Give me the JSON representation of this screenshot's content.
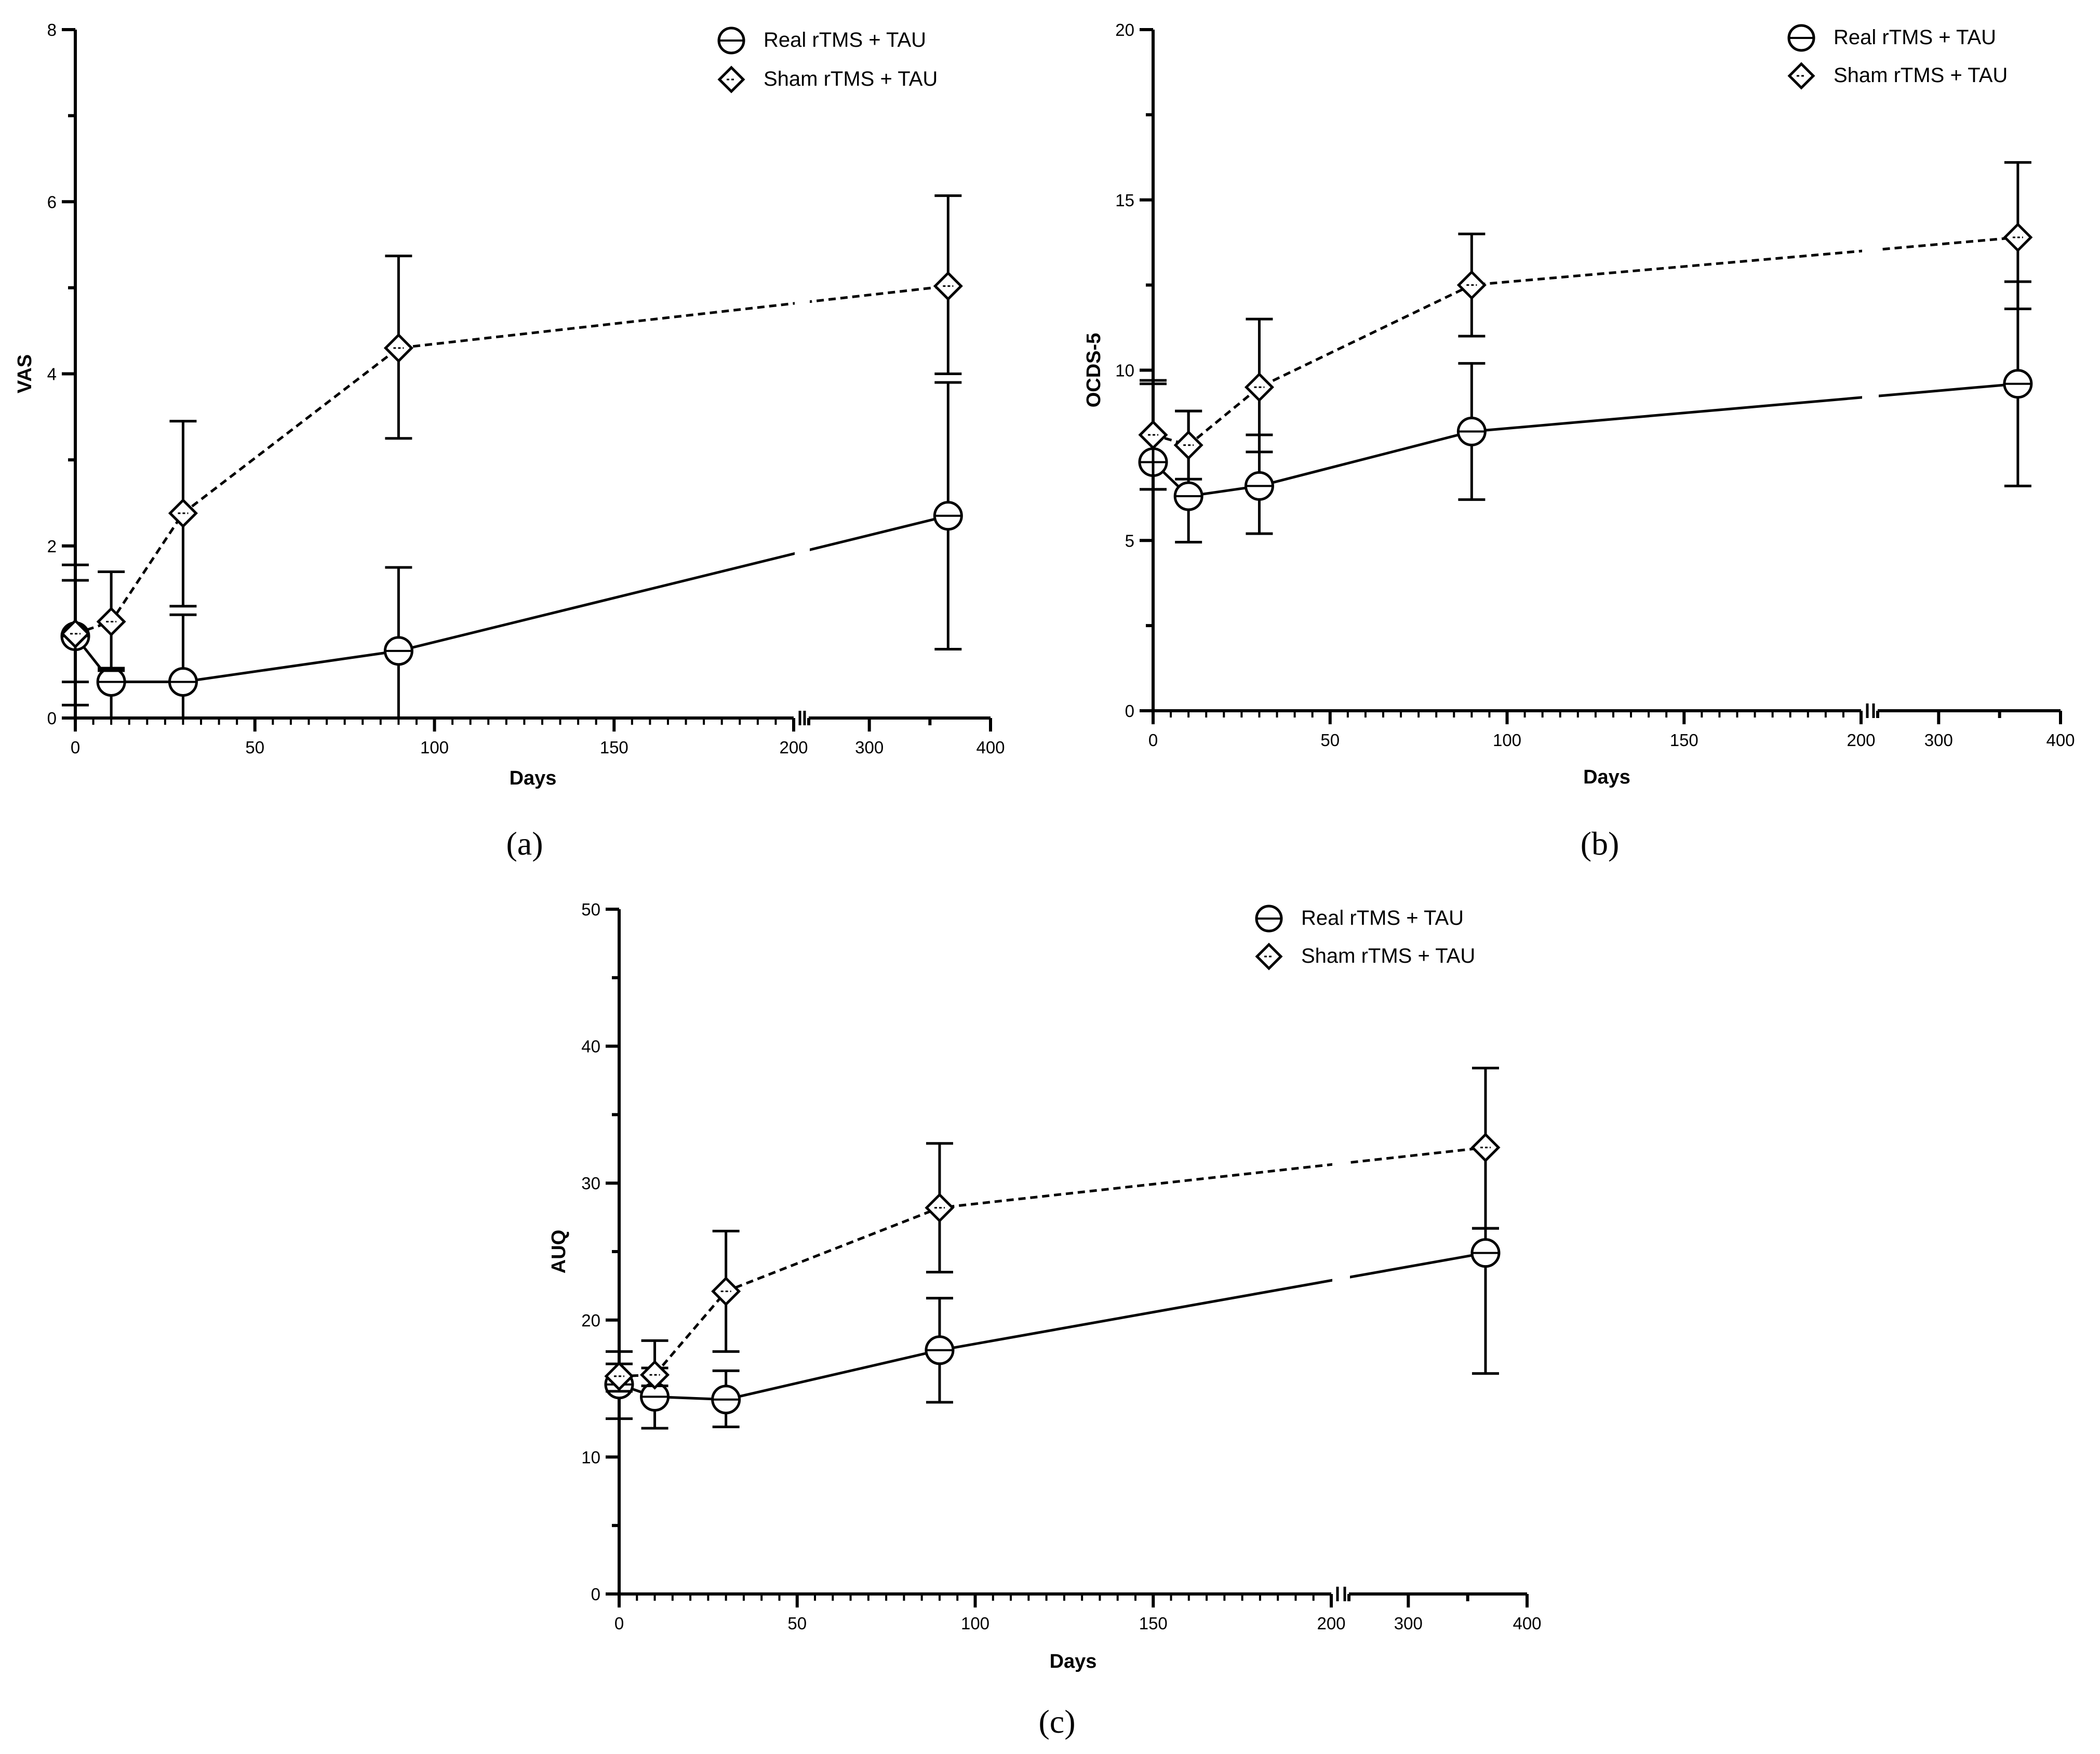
{
  "chart_data": [
    {
      "type": "line",
      "panel": "a",
      "panel_label": "(a)",
      "xlabel": "Days",
      "ylabel": "VAS",
      "ylim": [
        0,
        8
      ],
      "yticks": [
        0,
        2,
        4,
        6,
        8
      ],
      "xaxis_segments": [
        {
          "range": [
            0,
            200
          ],
          "ticks": [
            0,
            50,
            100,
            150,
            200
          ]
        },
        {
          "range": [
            250,
            400
          ],
          "ticks": [
            300,
            400
          ]
        }
      ],
      "legend": [
        "Real rTMS + TAU",
        "Sham rTMS + TAU"
      ],
      "legend_position": "top-right",
      "series": [
        {
          "name": "Real rTMS + TAU",
          "marker": "circle",
          "line": "solid",
          "x": [
            0,
            10,
            30,
            90,
            365
          ],
          "y": [
            0.95,
            0.42,
            0.42,
            0.78,
            2.35
          ],
          "err_low": [
            0.42,
            0.0,
            0.0,
            0.0,
            0.8
          ],
          "err_high": [
            1.78,
            0.58,
            1.2,
            1.75,
            3.9
          ]
        },
        {
          "name": "Sham rTMS + TAU",
          "marker": "diamond",
          "line": "dashed",
          "x": [
            0,
            10,
            30,
            90,
            365
          ],
          "y": [
            0.98,
            1.12,
            2.38,
            4.3,
            5.02
          ],
          "err_low": [
            0.15,
            0.55,
            1.3,
            3.25,
            4.0
          ],
          "err_high": [
            1.6,
            1.7,
            3.45,
            5.37,
            6.07
          ]
        }
      ]
    },
    {
      "type": "line",
      "panel": "b",
      "panel_label": "(b)",
      "xlabel": "Days",
      "ylabel": "OCDS-5",
      "ylim": [
        0,
        20
      ],
      "yticks": [
        0,
        5,
        10,
        15,
        20
      ],
      "xaxis_segments": [
        {
          "range": [
            0,
            200
          ],
          "ticks": [
            0,
            50,
            100,
            150,
            200
          ]
        },
        {
          "range": [
            250,
            400
          ],
          "ticks": [
            300,
            400
          ]
        }
      ],
      "legend": [
        "Real rTMS + TAU",
        "Sham rTMS + TAU"
      ],
      "legend_position": "top-right",
      "series": [
        {
          "name": "Real rTMS + TAU",
          "marker": "circle",
          "line": "solid",
          "x": [
            0,
            10,
            30,
            90,
            365
          ],
          "y": [
            7.3,
            6.3,
            6.6,
            8.2,
            9.6
          ],
          "err_low": [
            6.5,
            4.95,
            5.2,
            6.2,
            6.6
          ],
          "err_high": [
            9.6,
            8.8,
            8.1,
            10.2,
            12.6
          ]
        },
        {
          "name": "Sham rTMS + TAU",
          "marker": "diamond",
          "line": "dashed",
          "x": [
            0,
            10,
            30,
            90,
            365
          ],
          "y": [
            8.1,
            7.8,
            9.5,
            12.5,
            13.9
          ],
          "err_low": [
            6.5,
            6.8,
            7.6,
            11.0,
            11.8
          ],
          "err_high": [
            9.7,
            8.8,
            11.5,
            14.0,
            16.1
          ]
        }
      ]
    },
    {
      "type": "line",
      "panel": "c",
      "panel_label": "(c)",
      "xlabel": "Days",
      "ylabel": "AUQ",
      "ylim": [
        0,
        50
      ],
      "yticks": [
        0,
        10,
        20,
        30,
        40,
        50
      ],
      "xaxis_segments": [
        {
          "range": [
            0,
            200
          ],
          "ticks": [
            0,
            50,
            100,
            150,
            200
          ]
        },
        {
          "range": [
            250,
            400
          ],
          "ticks": [
            300,
            400
          ]
        }
      ],
      "legend": [
        "Real rTMS + TAU",
        "Sham rTMS + TAU"
      ],
      "legend_position": "top-right",
      "series": [
        {
          "name": "Real rTMS + TAU",
          "marker": "circle",
          "line": "solid",
          "x": [
            0,
            10,
            30,
            90,
            365
          ],
          "y": [
            15.3,
            14.4,
            14.2,
            17.8,
            24.9
          ],
          "err_low": [
            12.8,
            12.1,
            12.2,
            14.0,
            16.1
          ],
          "err_high": [
            17.7,
            16.5,
            16.3,
            21.6,
            26.7
          ]
        },
        {
          "name": "Sham rTMS + TAU",
          "marker": "diamond",
          "line": "dashed",
          "x": [
            0,
            10,
            30,
            90,
            365
          ],
          "y": [
            15.9,
            16.0,
            22.1,
            28.2,
            32.6
          ],
          "err_low": [
            14.8,
            15.2,
            17.7,
            23.5,
            26.7
          ],
          "err_high": [
            16.8,
            18.5,
            26.5,
            32.9,
            38.4
          ]
        }
      ]
    }
  ]
}
